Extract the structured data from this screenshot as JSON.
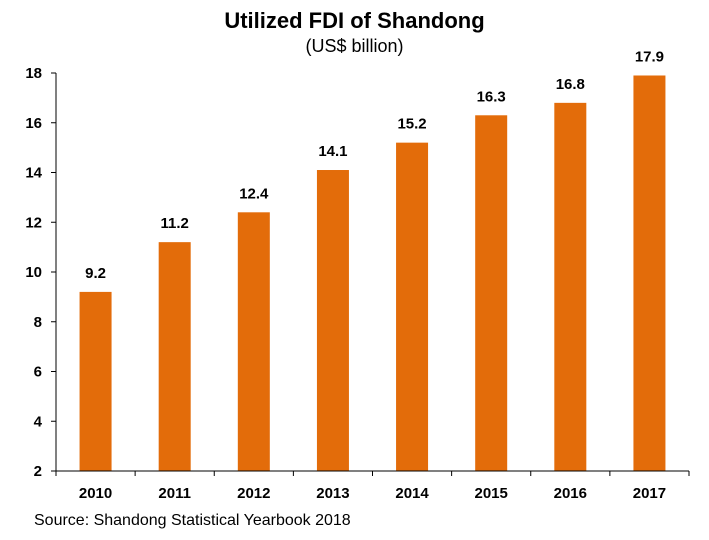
{
  "chart_data": {
    "type": "bar",
    "title": "Utilized FDI of Shandong",
    "subtitle": "(US$ billion)",
    "categories": [
      "2010",
      "2011",
      "2012",
      "2013",
      "2014",
      "2015",
      "2016",
      "2017"
    ],
    "values": [
      9.2,
      11.2,
      12.4,
      14.1,
      15.2,
      16.3,
      16.8,
      17.9
    ],
    "data_labels": [
      "9.2",
      "11.2",
      "12.4",
      "14.1",
      "15.2",
      "16.3",
      "16.8",
      "17.9"
    ],
    "ylim": [
      2,
      18
    ],
    "yticks": [
      2,
      4,
      6,
      8,
      10,
      12,
      14,
      16,
      18
    ],
    "grid": false,
    "legend": "none",
    "bar_color": "#E36C0A"
  },
  "source": "Source: Shandong Statistical Yearbook 2018"
}
